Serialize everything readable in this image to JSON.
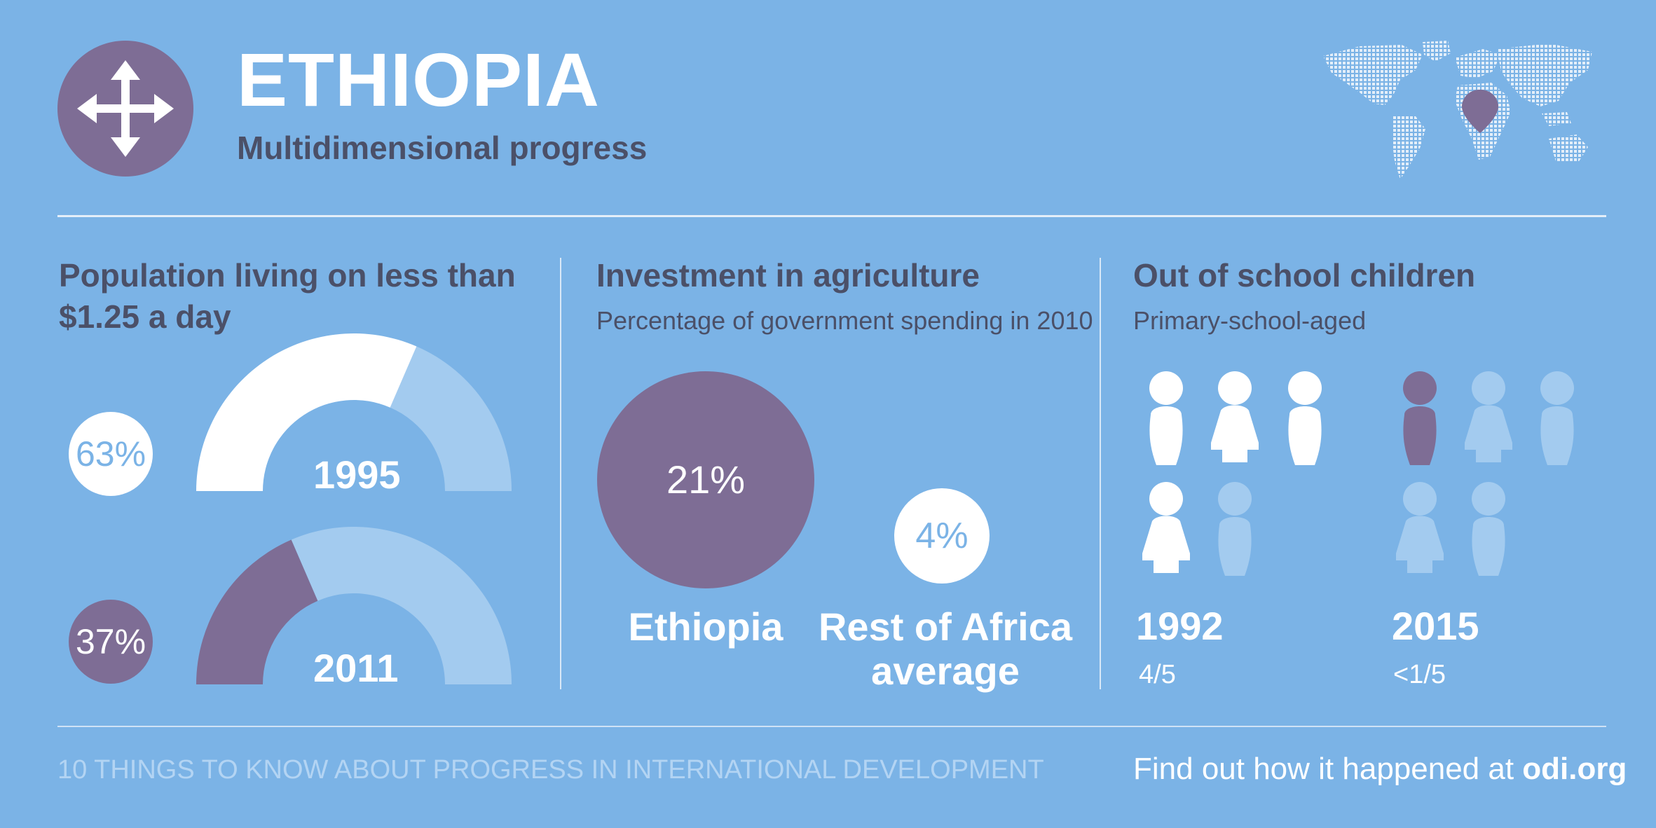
{
  "header": {
    "title": "ETHIOPIA",
    "subtitle": "Multidimensional progress",
    "logo_icon": "four-way-arrows-icon",
    "map_icon": "dotted-world-map-icon",
    "pin_icon": "location-pin-icon"
  },
  "colors": {
    "background": "#7bb3e6",
    "purple": "#7e6d95",
    "light_blue": "#a3cbef",
    "white": "#ffffff",
    "dark_text": "#4b5068"
  },
  "poverty": {
    "title_line1": "Population living on less than",
    "title_line2": "$1.25 a day",
    "rows": [
      {
        "year": "1995",
        "percent_label": "63%",
        "value": 63
      },
      {
        "year": "2011",
        "percent_label": "37%",
        "value": 37
      }
    ]
  },
  "agriculture": {
    "title": "Investment in agriculture",
    "subtitle": "Percentage of government spending in 2010",
    "ethiopia": {
      "percent_label": "21%",
      "value": 21,
      "name": "Ethiopia"
    },
    "africa": {
      "percent_label": "4%",
      "value": 4,
      "name_line1": "Rest of Africa",
      "name_line2": "average"
    }
  },
  "school": {
    "title": "Out of school children",
    "subtitle": "Primary-school-aged",
    "groups": [
      {
        "year": "1992",
        "fraction": "4/5"
      },
      {
        "year": "2015",
        "fraction": "<1/5"
      }
    ]
  },
  "footer": {
    "left": "10 THINGS TO KNOW ABOUT PROGRESS IN INTERNATIONAL DEVELOPMENT",
    "right_prefix": "Find out how it happened at ",
    "right_link": "odi.org"
  }
}
